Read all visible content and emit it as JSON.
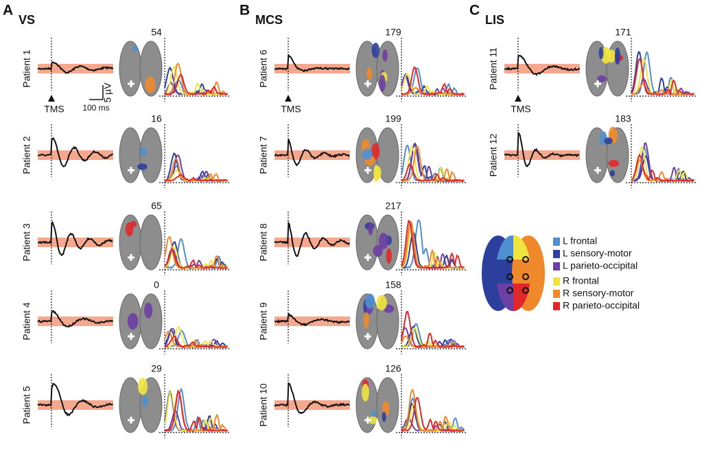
{
  "panels": [
    {
      "letter": "A",
      "group": "VS",
      "tms": "TMS",
      "rows": [
        {
          "patient": "Patient 1",
          "count": 54
        },
        {
          "patient": "Patient  2",
          "count": 16
        },
        {
          "patient": "Patient  3",
          "count": 65
        },
        {
          "patient": "Patient  4",
          "count": 0
        },
        {
          "patient": "Patient 5",
          "count": 29
        }
      ]
    },
    {
      "letter": "B",
      "group": "MCS",
      "tms": "TMS",
      "rows": [
        {
          "patient": "Patient 6",
          "count": 179
        },
        {
          "patient": "Patient  7",
          "count": 199
        },
        {
          "patient": "Patient 8",
          "count": 217
        },
        {
          "patient": "Patient  9",
          "count": 158
        },
        {
          "patient": "Patient  10",
          "count": 126
        }
      ]
    },
    {
      "letter": "C",
      "group": "LIS",
      "tms": "TMS",
      "rows": [
        {
          "patient": "Patient 11",
          "count": 171
        },
        {
          "patient": "Patient 12",
          "count": 183
        }
      ]
    }
  ],
  "scale": {
    "voltage": "5 µV",
    "time": "100 ms"
  },
  "legend": [
    {
      "label": "L frontal",
      "color": "#4f8fd0"
    },
    {
      "label": "L sensory-motor",
      "color": "#2c3f9c"
    },
    {
      "label": "L parieto-occipital",
      "color": "#6b3fa3"
    },
    {
      "label": "R frontal",
      "color": "#f0e440"
    },
    {
      "label": "R sensory-motor",
      "color": "#f0892c"
    },
    {
      "label": "R parieto-occipital",
      "color": "#e0282a"
    }
  ]
}
